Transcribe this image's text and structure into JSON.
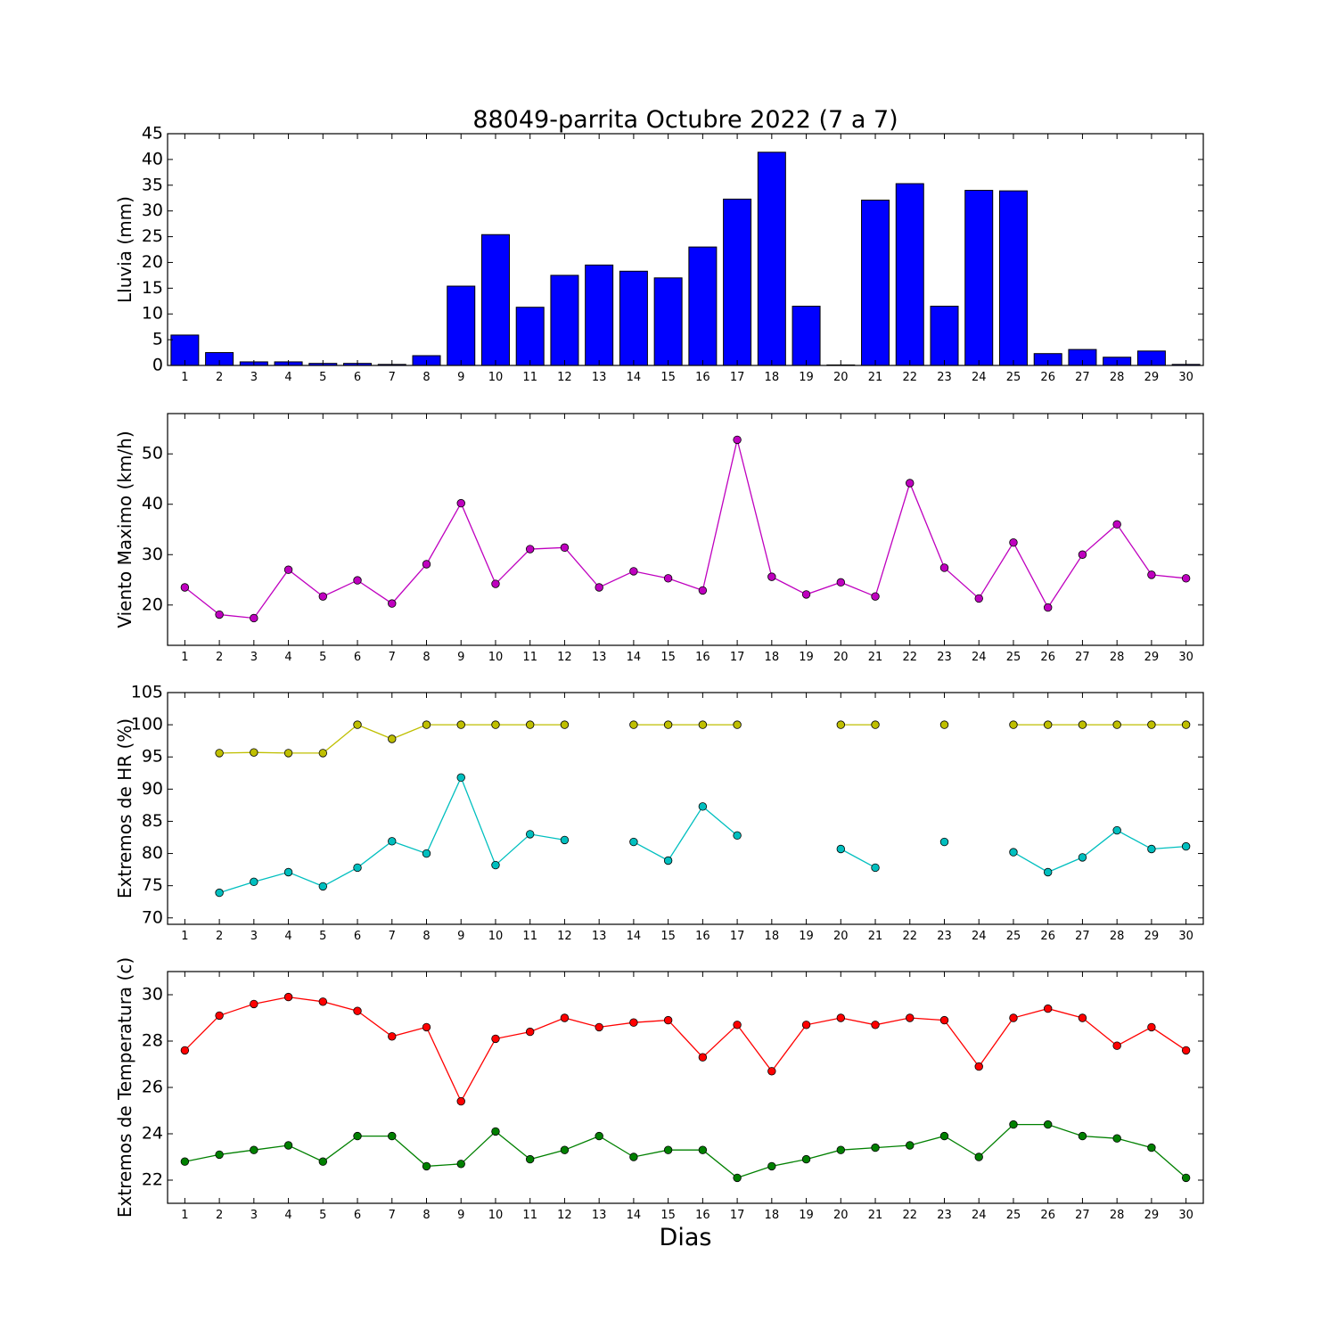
{
  "chart_data": {
    "title": "88049-parrita Octubre 2022  (7 a 7)",
    "xlabel": "Dias",
    "days": [
      1,
      2,
      3,
      4,
      5,
      6,
      7,
      8,
      9,
      10,
      11,
      12,
      13,
      14,
      15,
      16,
      17,
      18,
      19,
      20,
      21,
      22,
      23,
      24,
      25,
      26,
      27,
      28,
      29,
      30
    ],
    "panels": [
      {
        "id": "lluvia",
        "type": "bar",
        "ylabel": "Lluvia (mm)",
        "ylim": [
          0,
          45
        ],
        "yticks": [
          0,
          5,
          10,
          15,
          20,
          25,
          30,
          35,
          40,
          45
        ],
        "series": [
          {
            "color": "#0000ff",
            "values": [
              5.9,
              2.5,
              0.7,
              0.7,
              0.4,
              0.4,
              0.2,
              1.9,
              15.4,
              25.4,
              11.3,
              17.5,
              19.5,
              18.3,
              17.0,
              23.0,
              32.3,
              41.4,
              11.5,
              0.1,
              32.1,
              35.3,
              11.5,
              34.0,
              33.9,
              2.3,
              3.1,
              1.6,
              2.8,
              0.2
            ]
          }
        ]
      },
      {
        "id": "viento",
        "type": "line",
        "ylabel": "Viento Maximo (km/h)",
        "ylim": [
          12,
          58
        ],
        "yticks": [
          20,
          30,
          40,
          50
        ],
        "series": [
          {
            "color": "#bf00bf",
            "values": [
              23.5,
              18.1,
              17.4,
              27.0,
              21.7,
              24.9,
              20.3,
              28.1,
              40.2,
              24.2,
              31.1,
              31.4,
              23.5,
              26.7,
              25.3,
              22.9,
              52.8,
              25.6,
              22.1,
              24.5,
              21.7,
              44.2,
              27.4,
              21.3,
              32.4,
              19.5,
              30.0,
              36.0,
              26.0,
              25.3
            ]
          }
        ]
      },
      {
        "id": "hr",
        "type": "line",
        "ylabel": "Extremos de HR (%)",
        "ylim": [
          69,
          105
        ],
        "yticks": [
          70,
          75,
          80,
          85,
          90,
          95,
          100,
          105
        ],
        "series": [
          {
            "color": "#bfbf00",
            "values": [
              null,
              95.6,
              95.7,
              95.6,
              95.6,
              100,
              97.8,
              100,
              100,
              100,
              100,
              100,
              null,
              100,
              100,
              100,
              100,
              null,
              null,
              100,
              100,
              null,
              100,
              null,
              100,
              100,
              100,
              100,
              100,
              100
            ]
          },
          {
            "color": "#00bfbf",
            "values": [
              null,
              73.9,
              75.6,
              77.1,
              74.9,
              77.8,
              81.9,
              80.0,
              91.8,
              78.2,
              83.0,
              82.1,
              null,
              81.8,
              78.9,
              87.3,
              82.8,
              null,
              null,
              80.7,
              77.8,
              null,
              81.8,
              null,
              80.2,
              77.1,
              79.4,
              83.6,
              80.7,
              81.1
            ]
          }
        ]
      },
      {
        "id": "temp",
        "type": "line",
        "ylabel": "Extremos de Temperatura (c)",
        "ylim": [
          21,
          31
        ],
        "yticks": [
          22,
          24,
          26,
          28,
          30
        ],
        "series": [
          {
            "color": "#ff0000",
            "values": [
              27.6,
              29.1,
              29.6,
              29.9,
              29.7,
              29.3,
              28.2,
              28.6,
              25.4,
              28.1,
              28.4,
              29.0,
              28.6,
              28.8,
              28.9,
              27.3,
              28.7,
              26.7,
              28.7,
              29.0,
              28.7,
              29.0,
              28.9,
              26.9,
              29.0,
              29.4,
              29.0,
              27.8,
              28.6,
              27.6
            ]
          },
          {
            "color": "#008000",
            "values": [
              22.8,
              23.1,
              23.3,
              23.5,
              22.8,
              23.9,
              23.9,
              22.6,
              22.7,
              24.1,
              22.9,
              23.3,
              23.9,
              23.0,
              23.3,
              23.3,
              22.1,
              22.6,
              22.9,
              23.3,
              23.4,
              23.5,
              23.9,
              23.0,
              24.4,
              24.4,
              23.9,
              23.8,
              23.4,
              22.1
            ]
          }
        ]
      }
    ]
  }
}
